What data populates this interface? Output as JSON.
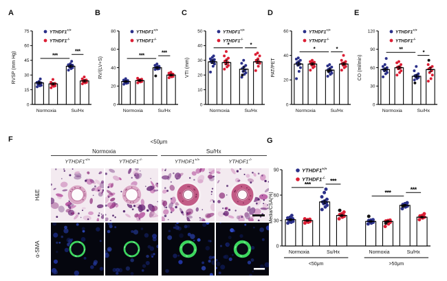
{
  "colors": {
    "wildtype_blue": "#2b3089",
    "knockout_red": "#dc1f35",
    "outlier_black": "#141414"
  },
  "panel_f": {
    "label": "F",
    "header": "<50μm",
    "groups": [
      {
        "label": "Normoxia"
      },
      {
        "label": "Su/Hx"
      }
    ],
    "cols": [
      {
        "base": "YTHDF1",
        "sup": "+/+"
      },
      {
        "base": "YTHDF1",
        "sup": "-/-"
      },
      {
        "base": "YTHDF1",
        "sup": "+/+"
      },
      {
        "base": "YTHDF1",
        "sup": "-/-"
      }
    ],
    "rows": [
      {
        "label": "H&E"
      },
      {
        "label": "α-SMA"
      }
    ]
  },
  "chart_data": [
    {
      "panel": "A",
      "type": "bar",
      "ylabel": "RVSP (mm Hg)",
      "ylim": [
        0,
        75
      ],
      "yticks": [
        0,
        15,
        30,
        45,
        60,
        75
      ],
      "legend": [
        {
          "base": "YTHDF1",
          "sup": "+/+",
          "color": "#2b3089"
        },
        {
          "base": "YTHDF1",
          "sup": "-/-",
          "color": "#dc1f35"
        }
      ],
      "bars": [
        {
          "group": "Normoxia",
          "name": "YTHDF1+/+",
          "color": "#2b3089",
          "mean": 22,
          "sem": 1.2,
          "points": [
            18,
            19,
            19.5,
            20,
            20.5,
            21,
            21.5,
            22,
            22.5,
            23.5,
            26
          ]
        },
        {
          "group": "Normoxia",
          "name": "YTHDF1-/-",
          "color": "#dc1f35",
          "mean": 21,
          "sem": 1.2,
          "points": [
            17,
            18.5,
            19,
            19.5,
            20,
            20.5,
            21,
            21.5,
            22.5,
            25.5
          ]
        },
        {
          "group": "Su/Hx",
          "name": "YTHDF1+/+",
          "color": "#2b3089",
          "mean": 39,
          "sem": 1.3,
          "points": [
            35,
            36.5,
            37.5,
            38,
            38.5,
            39,
            39.5,
            40,
            40.5,
            41.5,
            44
          ]
        },
        {
          "group": "Su/Hx",
          "name": "YTHDF1-/-",
          "color": "#dc1f35",
          "mean": 24,
          "sem": 1.2,
          "points": [
            21,
            22,
            22.5,
            23,
            23.5,
            24,
            24.5,
            25,
            26,
            28
          ]
        }
      ],
      "group_labels": [
        {
          "label": "Normoxia",
          "bars": [
            0,
            1
          ]
        },
        {
          "label": "Su/Hx",
          "bars": [
            2,
            3
          ]
        }
      ],
      "sig": [
        {
          "from": 0,
          "to": 2,
          "label": "***",
          "y": 47
        },
        {
          "from": 2,
          "to": 3,
          "label": "***",
          "y": 51
        }
      ]
    },
    {
      "panel": "B",
      "type": "bar",
      "ylabel": "RV/(LV+S)",
      "ylim": [
        0,
        80
      ],
      "yticks": [
        0,
        20,
        40,
        60,
        80
      ],
      "legend": [
        {
          "base": "YTHDF1",
          "sup": "+/+",
          "color": "#2b3089"
        },
        {
          "base": "YTHDF1",
          "sup": "-/-",
          "color": "#dc1f35"
        }
      ],
      "bars": [
        {
          "group": "Normoxia",
          "name": "YTHDF1+/+",
          "color": "#2b3089",
          "mean": 25,
          "sem": 1,
          "points": [
            22,
            23,
            23.5,
            24,
            24.5,
            25,
            25.5,
            26,
            26.5,
            28
          ]
        },
        {
          "group": "Normoxia",
          "name": "YTHDF1-/-",
          "color": "#dc1f35",
          "mean": 26,
          "sem": 1,
          "points": [
            23.5,
            24.5,
            25,
            25.5,
            26,
            26.5,
            27,
            27.5,
            28.5
          ]
        },
        {
          "group": "Su/Hx",
          "name": "YTHDF1+/+",
          "color": "#2b3089",
          "mean": 40,
          "sem": 1.2,
          "points": [
            38,
            38.5,
            39,
            39.5,
            40,
            40.5,
            41,
            41.5,
            42.5,
            44
          ],
          "black_points": [
            31
          ]
        },
        {
          "group": "Su/Hx",
          "name": "YTHDF1-/-",
          "color": "#dc1f35",
          "mean": 32,
          "sem": 1,
          "points": [
            29,
            30,
            30.5,
            31,
            31.5,
            32,
            32.5,
            33,
            34,
            35
          ]
        }
      ],
      "group_labels": [
        {
          "label": "Normoxia",
          "bars": [
            0,
            1
          ]
        },
        {
          "label": "Su/Hx",
          "bars": [
            2,
            3
          ]
        }
      ],
      "sig": [
        {
          "from": 0,
          "to": 2,
          "label": "***",
          "y": 50
        },
        {
          "from": 2,
          "to": 3,
          "label": "***",
          "y": 53
        }
      ]
    },
    {
      "panel": "C",
      "type": "bar",
      "ylabel": "VTI (mm)",
      "ylim": [
        0,
        50
      ],
      "yticks": [
        0,
        10,
        20,
        30,
        40,
        50
      ],
      "legend": [
        {
          "base": "YTHDF1",
          "sup": "+/+",
          "color": "#2b3089"
        },
        {
          "base": "YTHDF1",
          "sup": "-/-",
          "color": "#dc1f35"
        }
      ],
      "bars": [
        {
          "group": "Normoxia",
          "name": "YTHDF1+/+",
          "color": "#2b3089",
          "mean": 29,
          "sem": 1.2,
          "points": [
            22,
            26,
            27.5,
            28.5,
            29,
            29.5,
            30,
            30.5,
            31,
            32,
            33
          ]
        },
        {
          "group": "Normoxia",
          "name": "YTHDF1-/-",
          "color": "#dc1f35",
          "mean": 28.5,
          "sem": 1.4,
          "points": [
            24,
            25.5,
            26.5,
            27.5,
            28.5,
            29.5,
            30.5,
            31.5,
            33,
            36
          ]
        },
        {
          "group": "Su/Hx",
          "name": "YTHDF1+/+",
          "color": "#2b3089",
          "mean": 24,
          "sem": 1.6,
          "points": [
            18.5,
            20.5,
            21.5,
            22.5,
            23.5,
            24.5,
            25.5,
            26.5,
            28,
            30
          ],
          "black_points": [
            20
          ]
        },
        {
          "group": "Su/Hx",
          "name": "YTHDF1-/-",
          "color": "#dc1f35",
          "mean": 29,
          "sem": 1.3,
          "points": [
            23,
            26,
            28,
            28.5,
            29,
            30,
            31,
            33,
            34,
            35
          ]
        }
      ],
      "group_labels": [
        {
          "label": "Normoxia",
          "bars": [
            0,
            1
          ]
        },
        {
          "label": "Su/Hx",
          "bars": [
            2,
            3
          ]
        }
      ],
      "sig": [
        {
          "from": 0,
          "to": 2,
          "label": "*",
          "y": 38.5
        },
        {
          "from": 2,
          "to": 3,
          "label": "*",
          "y": 38.5
        }
      ]
    },
    {
      "panel": "D",
      "type": "bar",
      "ylabel": "PAT/PET",
      "ylim": [
        0,
        60
      ],
      "yticks": [
        0,
        20,
        40,
        60
      ],
      "legend": [
        {
          "base": "YTHDF1",
          "sup": "+/+",
          "color": "#2b3089"
        },
        {
          "base": "YTHDF1",
          "sup": "-/-",
          "color": "#dc1f35"
        }
      ],
      "bars": [
        {
          "group": "Normoxia",
          "name": "YTHDF1+/+",
          "color": "#2b3089",
          "mean": 33,
          "sem": 1.5,
          "points": [
            21,
            27,
            30,
            32,
            33,
            34,
            35,
            36,
            37,
            38
          ]
        },
        {
          "group": "Normoxia",
          "name": "YTHDF1-/-",
          "color": "#dc1f35",
          "mean": 33,
          "sem": 0.9,
          "points": [
            28,
            30,
            31,
            32,
            33,
            33.5,
            34,
            34.5,
            35,
            36
          ]
        },
        {
          "group": "Su/Hx",
          "name": "YTHDF1+/+",
          "color": "#2b3089",
          "mean": 28,
          "sem": 1.1,
          "points": [
            23,
            24.5,
            25.5,
            26.5,
            27.5,
            28.5,
            29.5,
            30.5,
            31.5,
            32.5
          ],
          "black_points": [
            27
          ]
        },
        {
          "group": "Su/Hx",
          "name": "YTHDF1-/-",
          "color": "#dc1f35",
          "mean": 33,
          "sem": 1,
          "points": [
            28,
            30,
            31,
            32,
            33,
            33.5,
            34,
            35,
            36,
            40
          ]
        }
      ],
      "group_labels": [
        {
          "label": "Normoxia",
          "bars": [
            0,
            1
          ]
        },
        {
          "label": "Su/Hx",
          "bars": [
            2,
            3
          ]
        }
      ],
      "sig": [
        {
          "from": 0,
          "to": 2,
          "label": "*",
          "y": 43
        },
        {
          "from": 2,
          "to": 3,
          "label": "*",
          "y": 43
        }
      ]
    },
    {
      "panel": "E",
      "type": "bar",
      "ylabel": "CO (ml/min)",
      "ylim": [
        0,
        120
      ],
      "yticks": [
        0,
        30,
        60,
        90,
        120
      ],
      "legend": [
        {
          "base": "YTHDF1",
          "sup": "+/+",
          "color": "#2b3089"
        },
        {
          "base": "YTHDF1",
          "sup": "-/-",
          "color": "#dc1f35"
        }
      ],
      "bars": [
        {
          "group": "Normoxia",
          "name": "YTHDF1+/+",
          "color": "#2b3089",
          "mean": 57,
          "sem": 2.6,
          "points": [
            45,
            50,
            52,
            55,
            56,
            57,
            58,
            60,
            62,
            65,
            75
          ]
        },
        {
          "group": "Normoxia",
          "name": "YTHDF1-/-",
          "color": "#dc1f35",
          "mean": 60,
          "sem": 2.3,
          "points": [
            48,
            52,
            55,
            58,
            60,
            61,
            62,
            65,
            68,
            70
          ]
        },
        {
          "group": "Su/Hx",
          "name": "YTHDF1+/+",
          "color": "#2b3089",
          "mean": 46,
          "sem": 2.5,
          "points": [
            40,
            42,
            44,
            45,
            46,
            47,
            48,
            50,
            55,
            62
          ],
          "black_points": [
            35
          ]
        },
        {
          "group": "Su/Hx",
          "name": "YTHDF1-/-",
          "color": "#dc1f35",
          "mean": 57,
          "sem": 3.4,
          "points": [
            38,
            42,
            48,
            52,
            55,
            58,
            60,
            62,
            65
          ],
          "black_points": [
            72
          ]
        }
      ],
      "group_labels": [
        {
          "label": "Normoxia",
          "bars": [
            0,
            1
          ]
        },
        {
          "label": "Su/Hx",
          "bars": [
            2,
            3
          ]
        }
      ],
      "sig": [
        {
          "from": 0,
          "to": 2,
          "label": "**",
          "y": 85
        },
        {
          "from": 2,
          "to": 3,
          "label": "*",
          "y": 80
        }
      ]
    },
    {
      "panel": "G",
      "type": "bar",
      "ylabel": "Media/CSA(%)",
      "ylim": [
        0,
        90
      ],
      "yticks": [
        0,
        30,
        60,
        90
      ],
      "legend": [
        {
          "base": "YTHDF1",
          "sup": "+/+",
          "color": "#2b3089"
        },
        {
          "base": "YTHDF1",
          "sup": "-/-",
          "color": "#dc1f35"
        }
      ],
      "bars": [
        {
          "group": "Normoxia <50μm",
          "name": "YTHDF1+/+",
          "color": "#2b3089",
          "mean": 31,
          "sem": 1.2,
          "points": [
            27,
            28,
            29,
            30,
            30.5,
            31,
            31.5,
            32,
            33,
            34,
            36
          ]
        },
        {
          "group": "Normoxia <50μm",
          "name": "YTHDF1-/-",
          "color": "#dc1f35",
          "mean": 30,
          "sem": 0.9,
          "points": [
            27,
            28,
            29,
            29.5,
            30,
            30.5,
            31,
            31.5,
            32
          ]
        },
        {
          "group": "Su/Hx <50μm",
          "name": "YTHDF1+/+",
          "color": "#2b3089",
          "mean": 52,
          "sem": 2.2,
          "points": [
            43,
            46,
            48,
            50,
            51,
            52,
            53,
            55,
            58,
            63,
            67
          ]
        },
        {
          "group": "Su/Hx <50μm",
          "name": "YTHDF1-/-",
          "color": "#dc1f35",
          "mean": 36,
          "sem": 1.2,
          "points": [
            32,
            34,
            35,
            36,
            36.5,
            37,
            38,
            40
          ],
          "black_points": [
            42
          ]
        },
        {
          "group": "Normoxia >50μm",
          "name": "YTHDF1+/+",
          "color": "#2b3089",
          "mean": 29,
          "sem": 0.9,
          "points": [
            26,
            27,
            28,
            29,
            29.5,
            30,
            30.5,
            31
          ],
          "black_points": [
            35
          ]
        },
        {
          "group": "Normoxia >50μm",
          "name": "YTHDF1-/-",
          "color": "#dc1f35",
          "mean": 29,
          "sem": 1,
          "points": [
            23,
            26,
            28,
            28.5,
            29,
            29.5,
            30,
            30.5
          ],
          "black_points": [
            27
          ]
        },
        {
          "group": "Su/Hx >50μm",
          "name": "YTHDF1+/+",
          "color": "#2b3089",
          "mean": 48,
          "sem": 1.1,
          "points": [
            44,
            46,
            47,
            48,
            48.5,
            49,
            50,
            51
          ],
          "black_points": [
            47
          ]
        },
        {
          "group": "Su/Hx >50μm",
          "name": "YTHDF1-/-",
          "color": "#dc1f35",
          "mean": 34,
          "sem": 1,
          "points": [
            31,
            33,
            34,
            34.5,
            35,
            35.5,
            36,
            38
          ]
        }
      ],
      "group_labels": [
        {
          "label": "Normoxia",
          "bars": [
            0,
            1
          ]
        },
        {
          "label": "Su/Hx",
          "bars": [
            2,
            3
          ]
        },
        {
          "label": "Normoxia",
          "bars": [
            4,
            5
          ]
        },
        {
          "label": "Su/Hx",
          "bars": [
            6,
            7
          ]
        }
      ],
      "size_groups": [
        {
          "label": "<50μm",
          "bars": [
            0,
            3
          ]
        },
        {
          "label": ">50μm",
          "bars": [
            4,
            7
          ]
        }
      ],
      "sig": [
        {
          "from": 0,
          "to": 2,
          "label": "***",
          "y": 69
        },
        {
          "from": 2,
          "to": 3,
          "label": "***",
          "y": 73
        },
        {
          "from": 4,
          "to": 6,
          "label": "***",
          "y": 59
        },
        {
          "from": 6,
          "to": 7,
          "label": "***",
          "y": 63
        }
      ]
    }
  ]
}
